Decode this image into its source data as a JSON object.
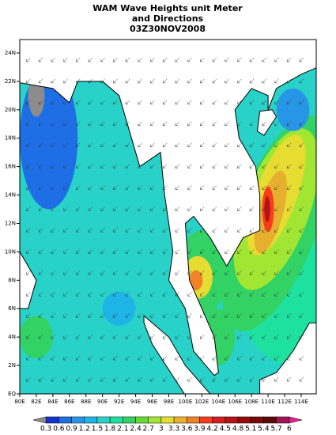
{
  "title": [
    "WAM Wave Heights unit Meter",
    "and Directions",
    "03Z30NOV2008"
  ],
  "map": {
    "lon_ticks": [
      {
        "value": 80,
        "label": "80E"
      },
      {
        "value": 82,
        "label": "82E"
      },
      {
        "value": 84,
        "label": "84E"
      },
      {
        "value": 86,
        "label": "86E"
      },
      {
        "value": 88,
        "label": "88E"
      },
      {
        "value": 90,
        "label": "90E"
      },
      {
        "value": 92,
        "label": "92E"
      },
      {
        "value": 94,
        "label": "94E"
      },
      {
        "value": 96,
        "label": "96E"
      },
      {
        "value": 98,
        "label": "98E"
      },
      {
        "value": 100,
        "label": "100E"
      },
      {
        "value": 102,
        "label": "102E"
      },
      {
        "value": 104,
        "label": "104E"
      },
      {
        "value": 106,
        "label": "106E"
      },
      {
        "value": 108,
        "label": "108E"
      },
      {
        "value": 110,
        "label": "110E"
      },
      {
        "value": 112,
        "label": "112E"
      },
      {
        "value": 114,
        "label": "114E"
      }
    ],
    "lat_ticks": [
      {
        "value": 0,
        "label": "EQ"
      },
      {
        "value": 2,
        "label": "2N"
      },
      {
        "value": 4,
        "label": "4N"
      },
      {
        "value": 6,
        "label": "6N"
      },
      {
        "value": 8,
        "label": "8N"
      },
      {
        "value": 10,
        "label": "10N"
      },
      {
        "value": 12,
        "label": "12N"
      },
      {
        "value": 14,
        "label": "14N"
      },
      {
        "value": 16,
        "label": "16N"
      },
      {
        "value": 18,
        "label": "18N"
      },
      {
        "value": 20,
        "label": "20N"
      },
      {
        "value": 22,
        "label": "22N"
      },
      {
        "value": 24,
        "label": "24N"
      }
    ]
  },
  "colorbar": {
    "levels": [
      0.3,
      0.6,
      0.9,
      1.2,
      1.5,
      1.8,
      2.1,
      2.4,
      2.7,
      3,
      3.3,
      3.6,
      3.9,
      4.2,
      4.5,
      4.8,
      5.1,
      5.4,
      5.7,
      6
    ],
    "colors": [
      "#8c8c8c",
      "#1432d2",
      "#1e6ee6",
      "#2896e6",
      "#1eb4e6",
      "#28d2c8",
      "#1ee1a0",
      "#32d264",
      "#64dc32",
      "#a0e632",
      "#e6dc32",
      "#e6af2d",
      "#f08228",
      "#fa3c1e",
      "#d21e1e",
      "#b41414",
      "#960a0a",
      "#780a0a",
      "#5a0a0a",
      "#a0145a",
      "#e61e8c"
    ]
  }
}
